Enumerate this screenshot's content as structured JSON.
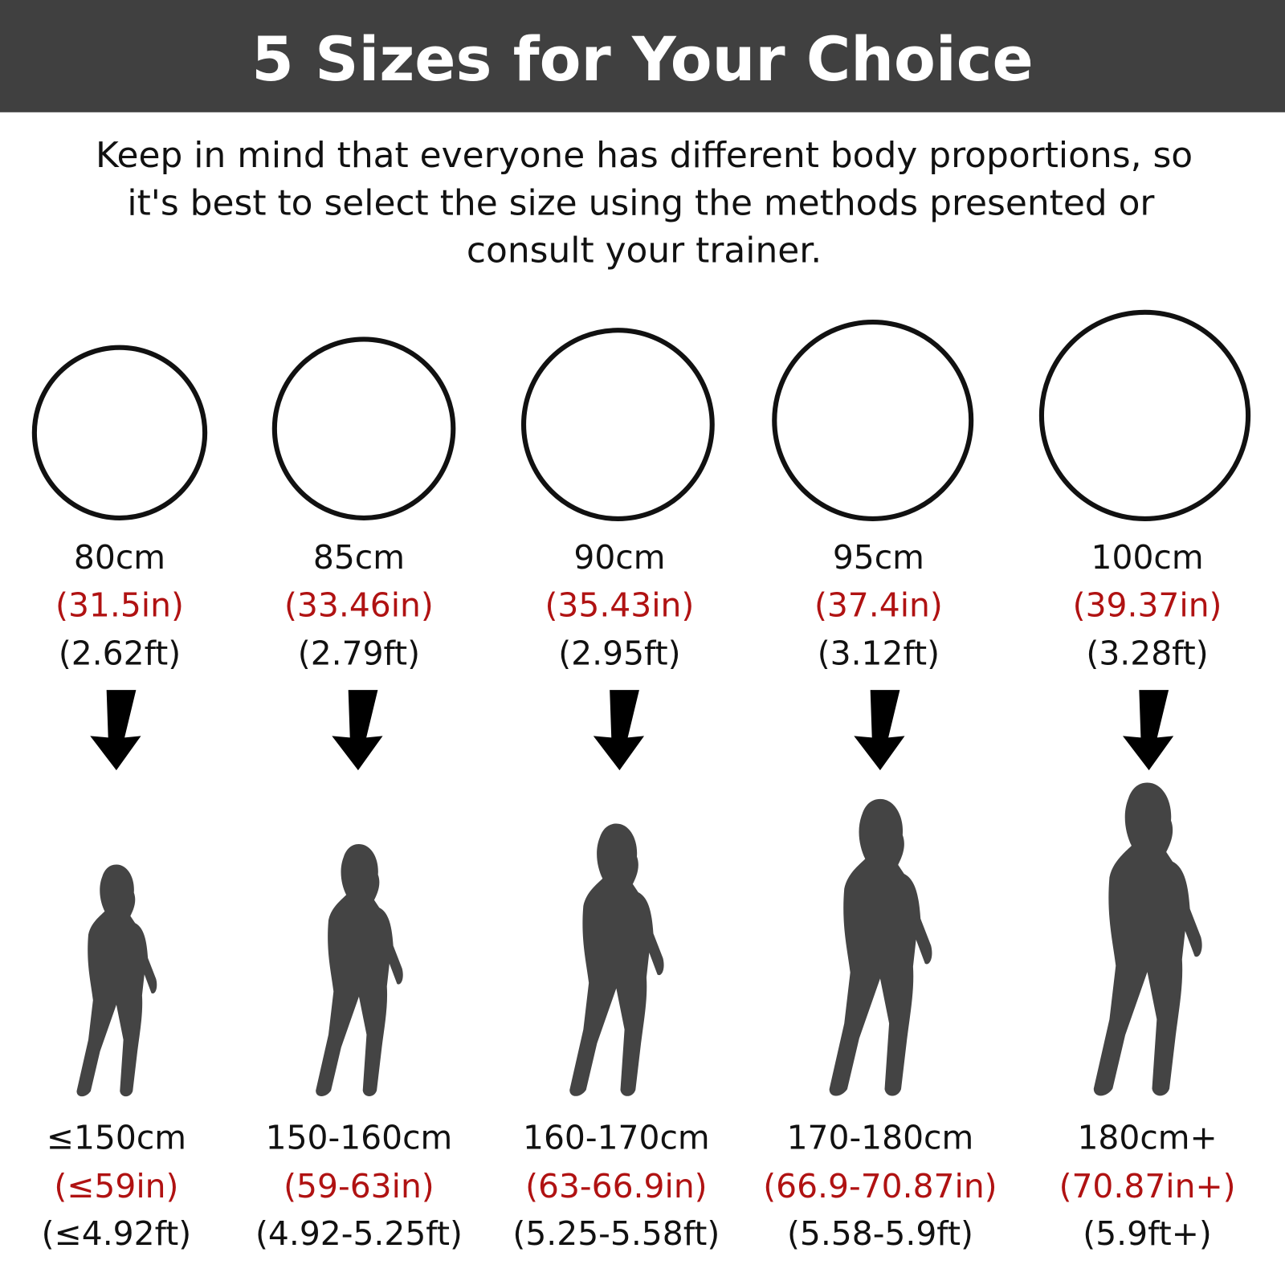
{
  "header": {
    "title": "5 Sizes for Your Choice",
    "bg_color": "#404040"
  },
  "intro": {
    "lines": [
      "Keep in mind that everyone has different body proportions, so",
      "it's best to select the size using the methods presented or",
      "consult your trainer."
    ]
  },
  "colors": {
    "accent_red": "#b01212",
    "silhouette": "#444444"
  },
  "sizes": [
    {
      "cm": "80cm",
      "in": "(31.5in)",
      "ft": "(2.62ft)",
      "height_cm": "≤150cm",
      "height_in": "(≤59in)",
      "height_ft": "(≤4.92ft)"
    },
    {
      "cm": "85cm",
      "in": "(33.46in)",
      "ft": "(2.79ft)",
      "height_cm": "150-160cm",
      "height_in": "(59-63in)",
      "height_ft": "(4.92-5.25ft)"
    },
    {
      "cm": "90cm",
      "in": "(35.43in)",
      "ft": "(2.95ft)",
      "height_cm": "160-170cm",
      "height_in": "(63-66.9in)",
      "height_ft": "(5.25-5.58ft)"
    },
    {
      "cm": "95cm",
      "in": "(37.4in)",
      "ft": "(3.12ft)",
      "height_cm": "170-180cm",
      "height_in": "(66.9-70.87in)",
      "height_ft": "(5.58-5.9ft)"
    },
    {
      "cm": "100cm",
      "in": "(39.37in)",
      "ft": "(3.28ft)",
      "height_cm": "180cm+",
      "height_in": "(70.87in+)",
      "height_ft": "(5.9ft+)"
    }
  ]
}
